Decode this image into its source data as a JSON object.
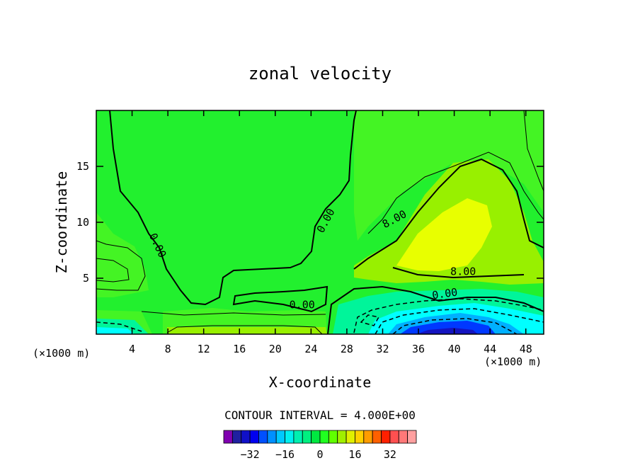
{
  "chart_data": {
    "type": "contour",
    "title": "zonal velocity",
    "xlabel": "X-coordinate",
    "ylabel": "Z-coordinate",
    "x_unit_label": "(×1000 m)",
    "x_ticks": [
      4,
      8,
      12,
      16,
      20,
      24,
      28,
      32,
      36,
      40,
      44,
      48
    ],
    "y_ticks": [
      5,
      10,
      15
    ],
    "xlim": [
      0,
      50
    ],
    "ylim": [
      0,
      20
    ],
    "contour_interval_text": "CONTOUR INTERVAL = 4.000E+00",
    "contour_labels": [
      {
        "text": "0.00",
        "x": 6.5,
        "z": 7.8,
        "angle": 65
      },
      {
        "text": "0.00",
        "x": 26.0,
        "z": 10.0,
        "angle": -62
      },
      {
        "text": "0.00",
        "x": 23.0,
        "z": 2.3,
        "angle": 0
      },
      {
        "text": "0.00",
        "x": 39.0,
        "z": 3.3,
        "angle": -8
      },
      {
        "text": "8.00",
        "x": 33.5,
        "z": 10.0,
        "angle": -28
      },
      {
        "text": "8.00",
        "x": 41.0,
        "z": 5.3,
        "angle": 0
      }
    ],
    "colorbar": {
      "tick_labels": [
        "−32",
        "−16",
        "0",
        "16",
        "32"
      ],
      "tick_values": [
        -32,
        -16,
        0,
        16,
        32
      ],
      "colors": [
        "#8000b0",
        "#2020a0",
        "#1010c8",
        "#0000f0",
        "#0050ff",
        "#0090ff",
        "#00c8ff",
        "#00f0f0",
        "#00f0b0",
        "#00f080",
        "#00e840",
        "#20ff20",
        "#60ff00",
        "#a0f000",
        "#e0f000",
        "#ffd000",
        "#ff9c00",
        "#ff6000",
        "#ff2000",
        "#ff5050",
        "#ff7878",
        "#ffa0a0"
      ]
    },
    "fill_levels": {
      "green": "#22f02e",
      "yellow_green": "#98f000",
      "yellow": "#e8ff00",
      "spring_green": "#00f59a",
      "cyan": "#00ffff",
      "sky": "#00b0ff",
      "blue": "#0038ff",
      "deep_blue": "#1414c0"
    }
  }
}
